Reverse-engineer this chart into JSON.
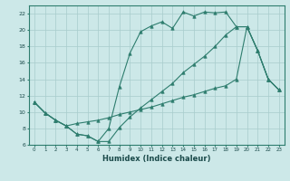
{
  "xlabel": "Humidex (Indice chaleur)",
  "bg_color": "#cce8e8",
  "line_color": "#2e7d6e",
  "xlim": [
    -0.5,
    23.5
  ],
  "ylim": [
    6,
    23
  ],
  "yticks": [
    6,
    8,
    10,
    12,
    14,
    16,
    18,
    20,
    22
  ],
  "xticks": [
    0,
    1,
    2,
    3,
    4,
    5,
    6,
    7,
    8,
    9,
    10,
    11,
    12,
    13,
    14,
    15,
    16,
    17,
    18,
    19,
    20,
    21,
    22,
    23
  ],
  "line1_x": [
    0,
    1,
    2,
    3,
    4,
    5,
    6,
    7,
    8,
    9,
    10,
    11,
    12,
    13,
    14,
    15,
    16,
    17,
    18,
    19,
    20,
    21,
    22,
    23
  ],
  "line1_y": [
    11.2,
    9.9,
    9.0,
    8.3,
    7.3,
    7.1,
    6.4,
    8.0,
    13.1,
    17.2,
    19.8,
    20.5,
    21.0,
    20.2,
    22.2,
    21.7,
    22.2,
    22.1,
    22.2,
    20.4,
    20.4,
    17.5,
    14.0,
    12.7
  ],
  "line2_x": [
    0,
    1,
    2,
    3,
    4,
    5,
    6,
    7,
    8,
    9,
    10,
    11,
    12,
    13,
    14,
    15,
    16,
    17,
    18,
    19,
    20,
    21,
    22,
    23
  ],
  "line2_y": [
    11.2,
    9.9,
    9.0,
    8.3,
    8.6,
    8.8,
    9.0,
    9.3,
    9.7,
    10.0,
    10.3,
    10.6,
    11.0,
    11.4,
    11.8,
    12.1,
    12.5,
    12.9,
    13.2,
    14.0,
    20.4,
    17.5,
    14.0,
    12.7
  ],
  "line3_x": [
    0,
    1,
    2,
    3,
    4,
    5,
    6,
    7,
    8,
    9,
    10,
    11,
    12,
    13,
    14,
    15,
    16,
    17,
    18,
    19,
    20,
    21,
    22,
    23
  ],
  "line3_y": [
    11.2,
    9.9,
    9.0,
    8.3,
    7.3,
    7.1,
    6.4,
    6.4,
    8.1,
    9.4,
    10.5,
    11.5,
    12.5,
    13.5,
    14.8,
    15.8,
    16.8,
    18.0,
    19.4,
    20.4,
    20.4,
    17.5,
    14.0,
    12.7
  ]
}
